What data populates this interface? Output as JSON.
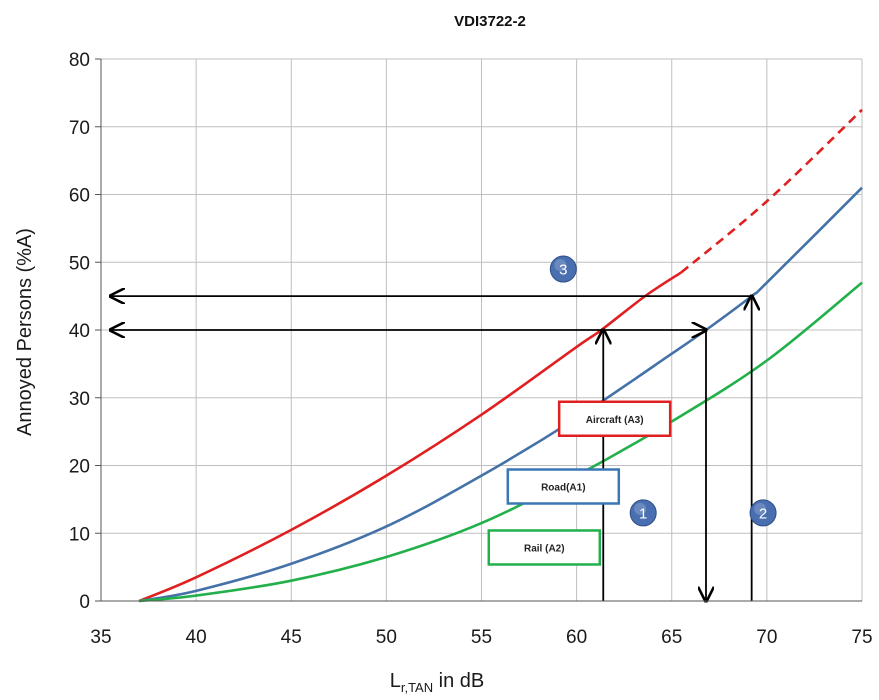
{
  "chart_data": {
    "type": "line",
    "title": "VDI3722-2",
    "xlabel": {
      "main": "L",
      "sub": "r,TAN",
      "suffix": " in dB"
    },
    "ylabel": "Annoyed Persons (%A)",
    "xlim": [
      35,
      75
    ],
    "ylim": [
      0,
      80
    ],
    "xticks": [
      35,
      40,
      45,
      50,
      55,
      60,
      65,
      70,
      75
    ],
    "yticks": [
      0,
      10,
      20,
      30,
      40,
      50,
      60,
      70,
      80
    ],
    "grid": true,
    "series": [
      {
        "name": "Aircraft (A3)",
        "color": "#e02020",
        "x": [
          37,
          40,
          45,
          50,
          55,
          60,
          61.3,
          63.6,
          65.5
        ],
        "y": [
          0,
          3.5,
          10.5,
          18.5,
          27.5,
          37.5,
          40,
          45,
          48.5
        ],
        "dashed_x": [
          65.5,
          70,
          75
        ],
        "dashed_y": [
          48.5,
          59,
          72.5
        ]
      },
      {
        "name": "Road(A1)",
        "color": "#4472a8",
        "x": [
          37,
          40,
          45,
          50,
          55,
          60,
          65,
          66.8,
          69.2,
          70,
          75
        ],
        "y": [
          0,
          1.5,
          5.5,
          11,
          18.5,
          27,
          36.5,
          40,
          45,
          47,
          61
        ]
      },
      {
        "name": "Rail (A2)",
        "color": "#22b04b",
        "x": [
          37,
          40,
          45,
          50,
          55,
          60,
          65,
          70,
          75
        ],
        "y": [
          0,
          0.8,
          3,
          6.5,
          11.5,
          18.5,
          26.5,
          35.5,
          47
        ]
      }
    ],
    "annotations": [
      {
        "label": "1",
        "x": 63.5,
        "y": 13,
        "color": "#4a6fb0"
      },
      {
        "label": "2",
        "x": 69.8,
        "y": 13,
        "color": "#4a6fb0"
      },
      {
        "label": "3",
        "x": 59.3,
        "y": 49,
        "color": "#4a6fb0"
      }
    ],
    "arrows": [
      {
        "from": [
          61.4,
          0
        ],
        "to": [
          61.4,
          40
        ],
        "head": "end"
      },
      {
        "from": [
          66.8,
          0
        ],
        "to": [
          66.8,
          40
        ],
        "head": "start"
      },
      {
        "from": [
          69.2,
          0
        ],
        "to": [
          69.2,
          45
        ],
        "head": "end"
      },
      {
        "from": [
          35.5,
          40
        ],
        "to": [
          66.8,
          40
        ],
        "head": "both"
      },
      {
        "from": [
          35.5,
          45
        ],
        "to": [
          69.2,
          45
        ],
        "head": "start"
      }
    ]
  },
  "legend_boxes": [
    {
      "text": "Aircraft (A3)",
      "color": "#e02020",
      "x": 62,
      "y": 26.9
    },
    {
      "text": "Road(A1)",
      "color": "#3a78b5",
      "x": 59.3,
      "y": 16.9
    },
    {
      "text": "Rail (A2)",
      "color": "#22b04b",
      "x": 58.3,
      "y": 7.9
    }
  ]
}
